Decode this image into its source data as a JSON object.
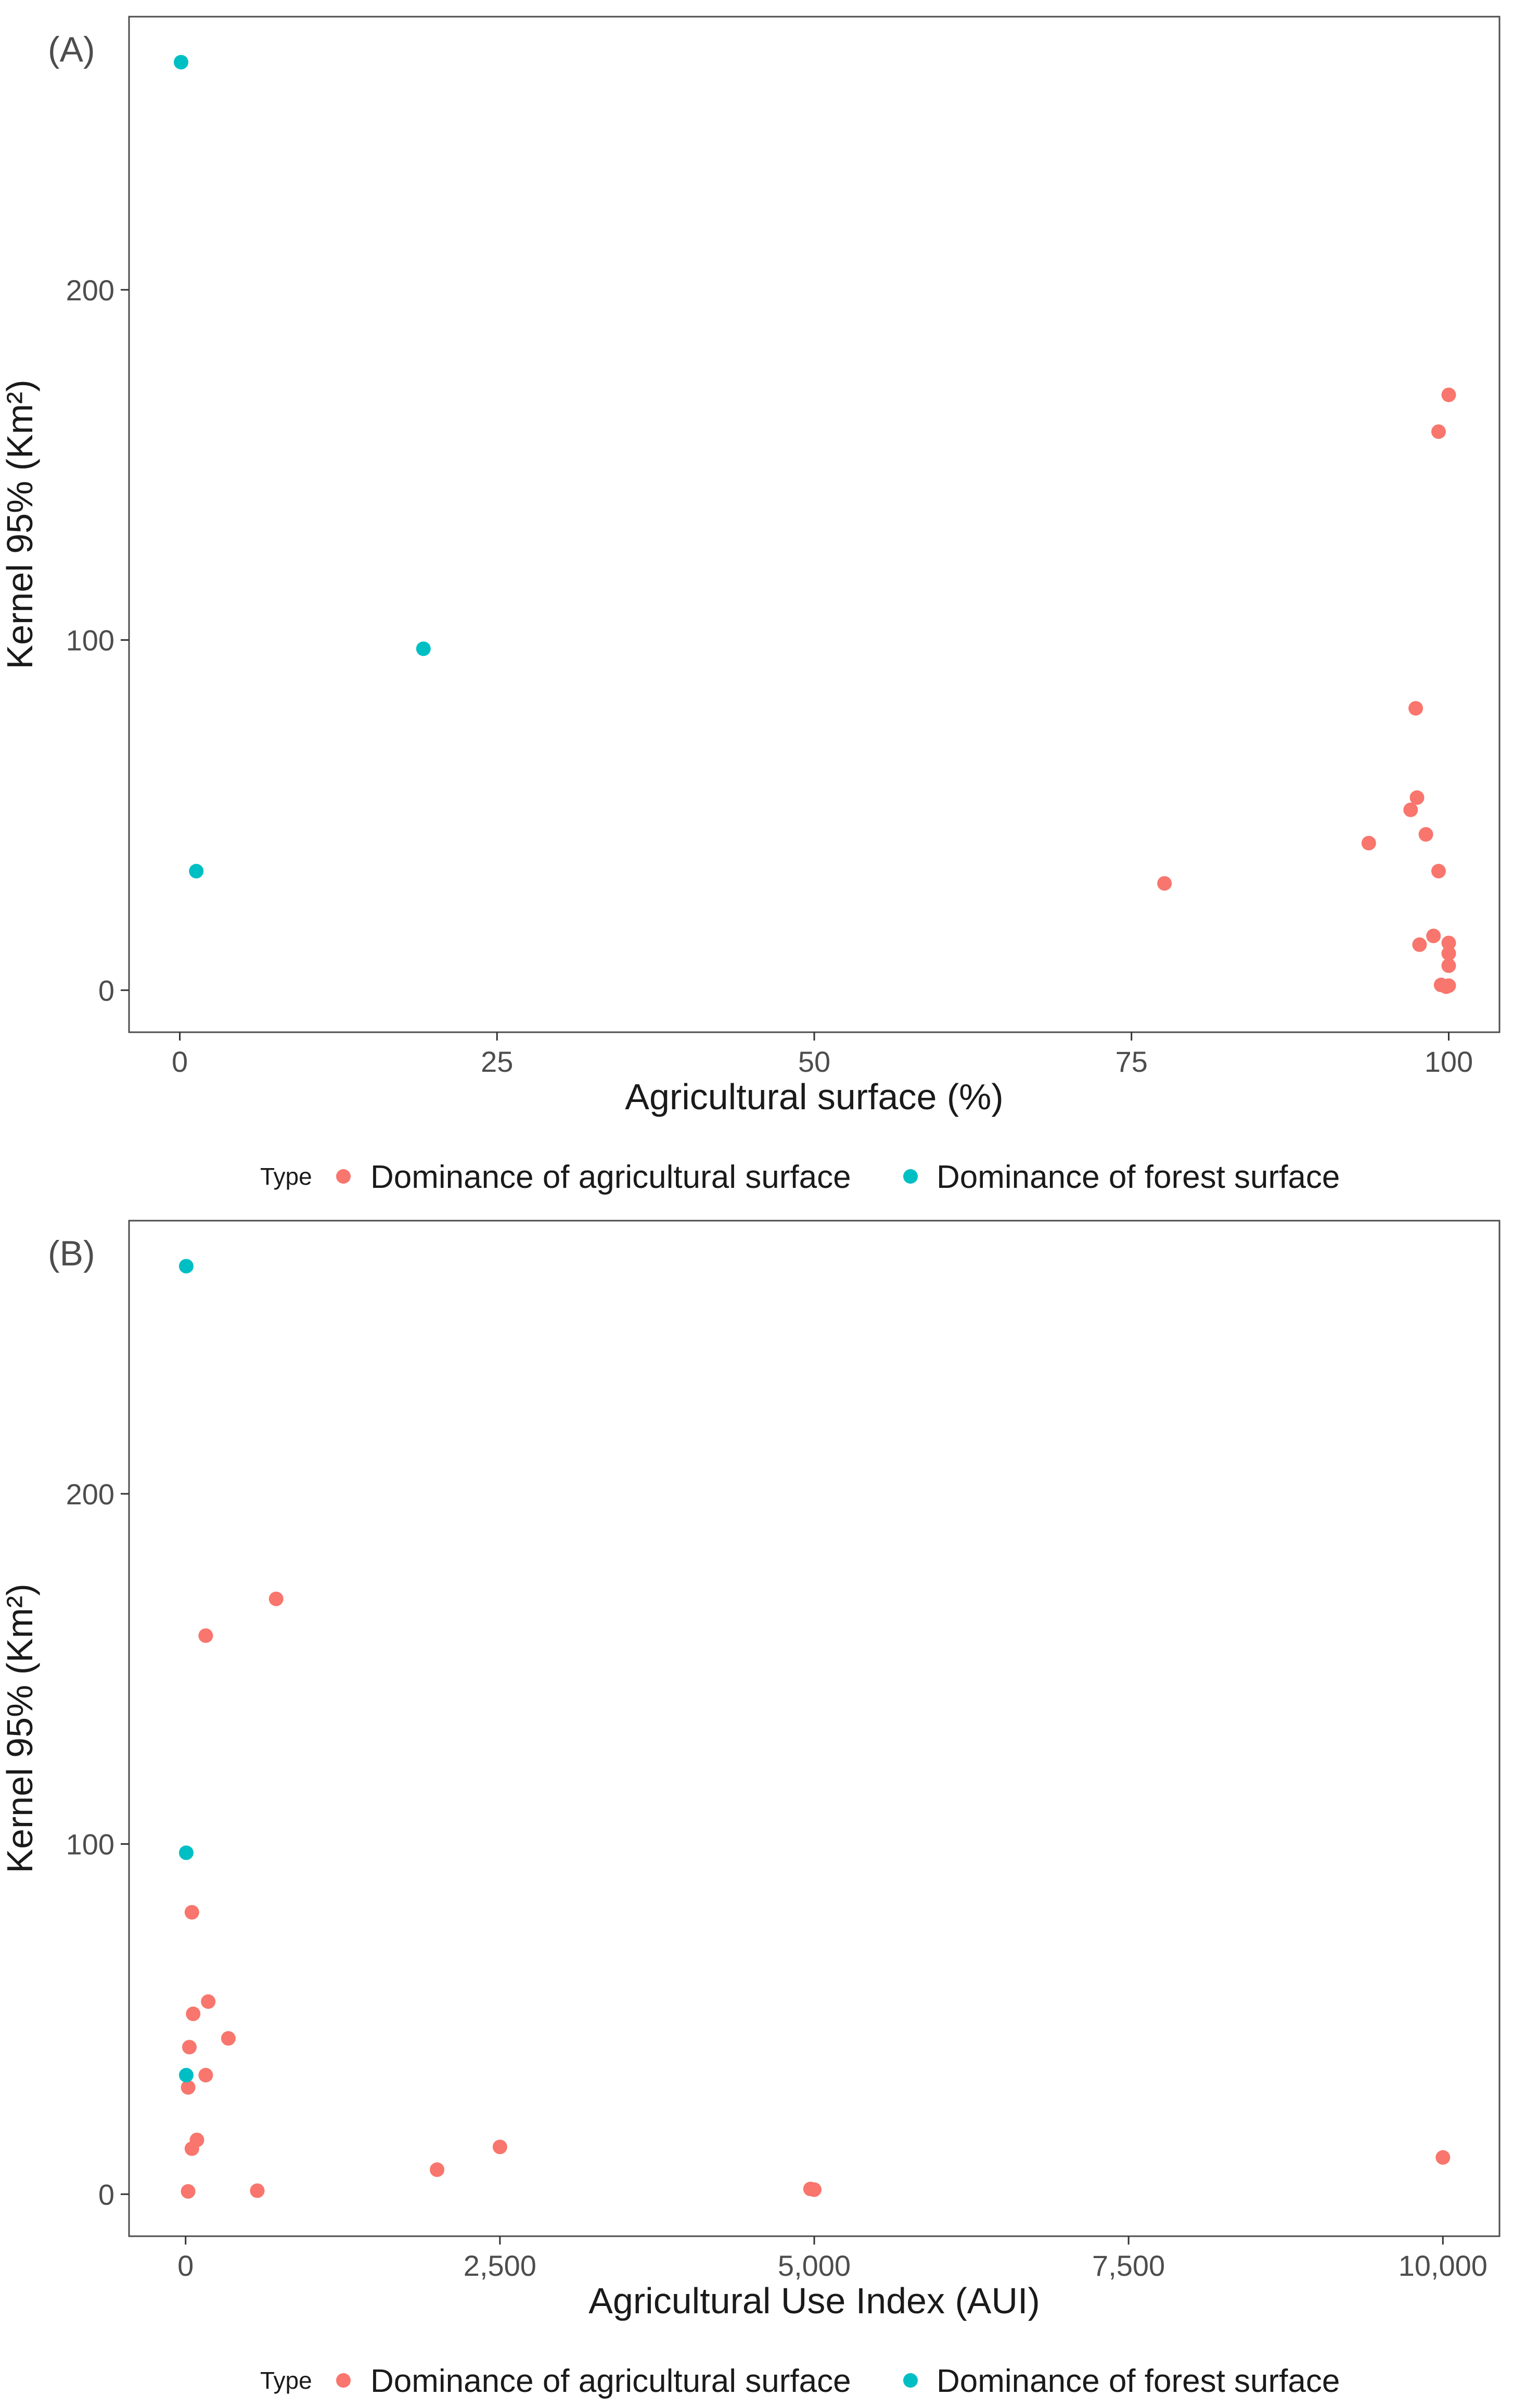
{
  "colors": {
    "agricultural": "#F8766D",
    "forest": "#00BFC4",
    "panel_border": "#4d4d4d"
  },
  "chart_data": [
    {
      "type": "scatter",
      "panel_label": "(A)",
      "title": "",
      "xlabel": "Agricultural surface (%)",
      "ylabel": "Kernel 95% (Km²)",
      "xlim": [
        -4,
        104
      ],
      "ylim": [
        -12,
        278
      ],
      "xticks": [
        0,
        25,
        50,
        75,
        100
      ],
      "xtick_labels": [
        "0",
        "25",
        "50",
        "75",
        "100"
      ],
      "yticks": [
        0,
        100,
        200
      ],
      "ytick_labels": [
        "0",
        "100",
        "200"
      ],
      "grid": false,
      "legend": {
        "title": "Type",
        "position": "bottom",
        "entries": [
          "Dominance of agricultural surface",
          "Dominance of forest surface"
        ]
      },
      "series": [
        {
          "name": "Dominance of agricultural surface",
          "color_key": "agricultural",
          "points": [
            [
              100,
              170
            ],
            [
              99.2,
              159.5
            ],
            [
              97.4,
              80.5
            ],
            [
              97.5,
              55
            ],
            [
              97,
              51.5
            ],
            [
              98.2,
              44.5
            ],
            [
              93.7,
              42
            ],
            [
              99.2,
              34
            ],
            [
              77.6,
              30.5
            ],
            [
              98.8,
              15.5
            ],
            [
              100,
              13.5
            ],
            [
              97.7,
              13
            ],
            [
              100,
              10.5
            ],
            [
              100,
              7
            ],
            [
              99.4,
              1.5
            ],
            [
              100,
              1.3
            ],
            [
              99.8,
              1
            ]
          ]
        },
        {
          "name": "Dominance of forest surface",
          "color_key": "forest",
          "points": [
            [
              0.1,
              265
            ],
            [
              19.2,
              97.5
            ],
            [
              1.3,
              34
            ]
          ]
        }
      ]
    },
    {
      "type": "scatter",
      "panel_label": "(B)",
      "title": "",
      "xlabel": "Agricultural Use Index (AUI)",
      "ylabel": "Kernel 95% (Km²)",
      "xlim": [
        -450,
        10450
      ],
      "ylim": [
        -12,
        278
      ],
      "xticks": [
        0,
        2500,
        5000,
        7500,
        10000
      ],
      "xtick_labels": [
        "0",
        "2,500",
        "5,000",
        "7,500",
        "10,000"
      ],
      "yticks": [
        0,
        100,
        200
      ],
      "ytick_labels": [
        "0",
        "100",
        "200"
      ],
      "grid": false,
      "legend": {
        "title": "Type",
        "position": "bottom",
        "entries": [
          "Dominance of agricultural surface",
          "Dominance of forest surface"
        ]
      },
      "series": [
        {
          "name": "Dominance of agricultural surface",
          "color_key": "agricultural",
          "points": [
            [
              720,
              170
            ],
            [
              160,
              159.5
            ],
            [
              50,
              80.5
            ],
            [
              180,
              55
            ],
            [
              60,
              51.5
            ],
            [
              340,
              44.5
            ],
            [
              30,
              42
            ],
            [
              160,
              34
            ],
            [
              20,
              30.5
            ],
            [
              90,
              15.5
            ],
            [
              2500,
              13.5
            ],
            [
              50,
              13
            ],
            [
              10000,
              10.5
            ],
            [
              2000,
              7
            ],
            [
              4970,
              1.5
            ],
            [
              5000,
              1.3
            ],
            [
              570,
              1
            ],
            [
              20,
              0.8
            ]
          ]
        },
        {
          "name": "Dominance of forest surface",
          "color_key": "forest",
          "points": [
            [
              5,
              265
            ],
            [
              5,
              97.5
            ],
            [
              5,
              34
            ]
          ]
        }
      ]
    }
  ]
}
